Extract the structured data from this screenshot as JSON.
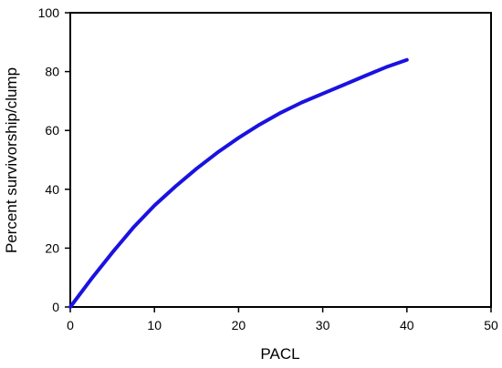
{
  "chart_data": {
    "type": "line",
    "title": "",
    "xlabel": "PACL",
    "ylabel": "Percent survivorship/clump",
    "xlim": [
      0,
      50
    ],
    "ylim": [
      0,
      100
    ],
    "x_ticks": [
      0,
      10,
      20,
      30,
      40,
      50
    ],
    "y_ticks": [
      0,
      20,
      40,
      60,
      80,
      100
    ],
    "grid": false,
    "legend": "none",
    "series": [
      {
        "color": "#1a12e0",
        "x": [
          0,
          2.5,
          5,
          7.5,
          10,
          12.5,
          15,
          17.5,
          20,
          22.5,
          25,
          27.5,
          30,
          32.5,
          35,
          37.5,
          40
        ],
        "y": [
          0,
          9.5,
          18.5,
          27,
          34.5,
          41,
          47,
          52.5,
          57.5,
          62,
          66,
          69.5,
          72.5,
          75.5,
          78.5,
          81.5,
          84
        ]
      }
    ]
  }
}
